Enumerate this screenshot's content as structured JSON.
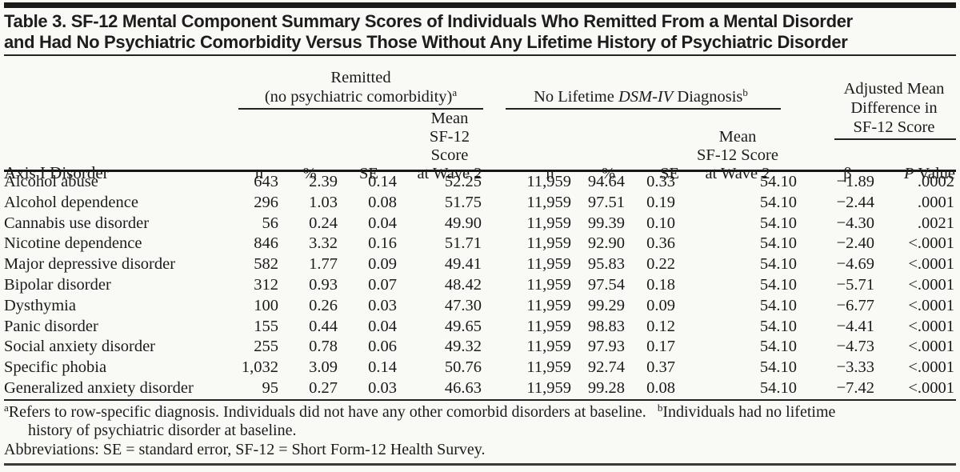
{
  "title": {
    "line1": "Table 3. SF-12 Mental Component Summary Scores of Individuals Who Remitted From a Mental Disorder",
    "line2": "and Had No Psychiatric Comorbidity Versus Those Without Any Lifetime History of Psychiatric Disorder"
  },
  "table": {
    "row_header": "Axis I Disorder",
    "group1": {
      "line1": "Remitted",
      "line2": "(no psychiatric comorbidity)",
      "sup": "a",
      "col_n": "n",
      "col_pct": "%",
      "col_se": "SE",
      "mean1": "Mean",
      "mean2": "SF-12 Score",
      "mean3": "at Wave 2"
    },
    "group2": {
      "prefix": "No Lifetime ",
      "italic": "DSM-IV",
      "suffix": " Diagnosis",
      "sup": "b",
      "col_n": "n",
      "col_pct": "%",
      "col_se": "SE",
      "mean1": "Mean",
      "mean2": "SF-12 Score",
      "mean3": "at Wave 2"
    },
    "group3": {
      "line1": "Adjusted Mean",
      "line2": "Difference in",
      "line3": "SF-12 Score",
      "col_beta": "β",
      "col_p_italic": "P",
      "col_p_rest": " Value"
    },
    "rows": [
      {
        "disorder": "Alcohol abuse",
        "n1": "643",
        "pct1": "2.39",
        "se1": "0.14",
        "wave1": "52.25",
        "n2": "11,959",
        "pct2": "94.64",
        "se2": "0.33",
        "wave2": "54.10",
        "beta": "−1.89",
        "p": ".0002"
      },
      {
        "disorder": "Alcohol dependence",
        "n1": "296",
        "pct1": "1.03",
        "se1": "0.08",
        "wave1": "51.75",
        "n2": "11,959",
        "pct2": "97.51",
        "se2": "0.19",
        "wave2": "54.10",
        "beta": "−2.44",
        "p": ".0001"
      },
      {
        "disorder": "Cannabis use disorder",
        "n1": "56",
        "pct1": "0.24",
        "se1": "0.04",
        "wave1": "49.90",
        "n2": "11,959",
        "pct2": "99.39",
        "se2": "0.10",
        "wave2": "54.10",
        "beta": "−4.30",
        "p": ".0021"
      },
      {
        "disorder": "Nicotine dependence",
        "n1": "846",
        "pct1": "3.32",
        "se1": "0.16",
        "wave1": "51.71",
        "n2": "11,959",
        "pct2": "92.90",
        "se2": "0.36",
        "wave2": "54.10",
        "beta": "−2.40",
        "p": "<.0001"
      },
      {
        "disorder": "Major depressive disorder",
        "n1": "582",
        "pct1": "1.77",
        "se1": "0.09",
        "wave1": "49.41",
        "n2": "11,959",
        "pct2": "95.83",
        "se2": "0.22",
        "wave2": "54.10",
        "beta": "−4.69",
        "p": "<.0001"
      },
      {
        "disorder": "Bipolar disorder",
        "n1": "312",
        "pct1": "0.93",
        "se1": "0.07",
        "wave1": "48.42",
        "n2": "11,959",
        "pct2": "97.54",
        "se2": "0.18",
        "wave2": "54.10",
        "beta": "−5.71",
        "p": "<.0001"
      },
      {
        "disorder": "Dysthymia",
        "n1": "100",
        "pct1": "0.26",
        "se1": "0.03",
        "wave1": "47.30",
        "n2": "11,959",
        "pct2": "99.29",
        "se2": "0.09",
        "wave2": "54.10",
        "beta": "−6.77",
        "p": "<.0001"
      },
      {
        "disorder": "Panic disorder",
        "n1": "155",
        "pct1": "0.44",
        "se1": "0.04",
        "wave1": "49.65",
        "n2": "11,959",
        "pct2": "98.83",
        "se2": "0.12",
        "wave2": "54.10",
        "beta": "−4.41",
        "p": "<.0001"
      },
      {
        "disorder": "Social anxiety disorder",
        "n1": "255",
        "pct1": "0.78",
        "se1": "0.06",
        "wave1": "49.32",
        "n2": "11,959",
        "pct2": "97.93",
        "se2": "0.17",
        "wave2": "54.10",
        "beta": "−4.73",
        "p": "<.0001"
      },
      {
        "disorder": "Specific phobia",
        "n1": "1,032",
        "pct1": "3.09",
        "se1": "0.14",
        "wave1": "50.76",
        "n2": "11,959",
        "pct2": "92.74",
        "se2": "0.37",
        "wave2": "54.10",
        "beta": "−3.33",
        "p": "<.0001"
      },
      {
        "disorder": "Generalized anxiety disorder",
        "n1": "95",
        "pct1": "0.27",
        "se1": "0.03",
        "wave1": "46.63",
        "n2": "11,959",
        "pct2": "99.28",
        "se2": "0.08",
        "wave2": "54.10",
        "beta": "−7.42",
        "p": "<.0001"
      }
    ]
  },
  "footnotes": {
    "a_marker": "a",
    "a_text": "Refers to row-specific diagnosis. Individuals did not have any other comorbid disorders at baseline.",
    "b_marker": "b",
    "b_text": "Individuals had no lifetime",
    "b_text_line2": "history of psychiatric disorder at baseline.",
    "abbreviations": "Abbreviations: SE = standard error, SF-12 = Short Form-12 Health Survey."
  }
}
